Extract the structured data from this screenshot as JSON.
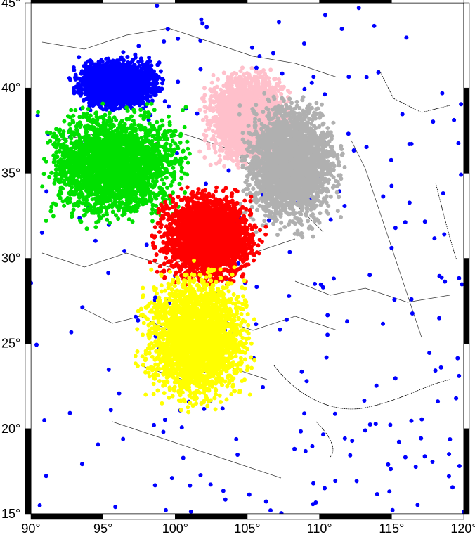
{
  "map": {
    "lon_range": [
      90,
      120
    ],
    "lat_range": [
      15,
      45
    ],
    "lon_ticks": [
      {
        "value": 90,
        "label": "90°"
      },
      {
        "value": 95,
        "label": "95°"
      },
      {
        "value": 100,
        "label": "100°"
      },
      {
        "value": 105,
        "label": "105°"
      },
      {
        "value": 110,
        "label": "110°"
      },
      {
        "value": 115,
        "label": "115°"
      },
      {
        "value": 120,
        "label": "120°"
      }
    ],
    "lat_ticks": [
      {
        "value": 15,
        "label": "15°"
      },
      {
        "value": 20,
        "label": "20°"
      },
      {
        "value": 25,
        "label": "25°"
      },
      {
        "value": 30,
        "label": "30°"
      },
      {
        "value": 35,
        "label": "35°"
      },
      {
        "value": 40,
        "label": "40°"
      },
      {
        "value": 45,
        "label": "45°"
      }
    ],
    "frame_colors": [
      "#000000",
      "#ffffff"
    ],
    "clusters": [
      {
        "color": "#0000ff",
        "lon_range": [
          92.5,
          99.5
        ],
        "lat_range": [
          38.5,
          42.0
        ],
        "density": "dense"
      },
      {
        "color": "#ffc0cb",
        "lon_range": [
          101.5,
          108.5
        ],
        "lat_range": [
          35.0,
          41.5
        ],
        "density": "dense"
      },
      {
        "color": "#00e000",
        "lon_range": [
          90.0,
          101.5
        ],
        "lat_range": [
          31.5,
          39.5
        ],
        "density": "dense"
      },
      {
        "color": "#b0b0b0",
        "lon_range": [
          104.0,
          112.0
        ],
        "lat_range": [
          31.0,
          40.0
        ],
        "density": "dense"
      },
      {
        "color": "#ff0000",
        "lon_range": [
          98.0,
          106.5
        ],
        "lat_range": [
          28.0,
          34.5
        ],
        "density": "dense"
      },
      {
        "color": "#ffff00",
        "lon_range": [
          97.0,
          106.0
        ],
        "lat_range": [
          20.5,
          30.0
        ],
        "density": "dense"
      }
    ],
    "scatter_color": "#0000ff"
  }
}
